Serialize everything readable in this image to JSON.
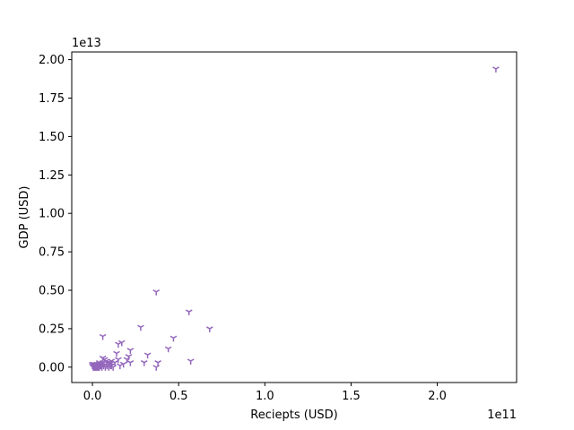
{
  "chart_data": {
    "type": "scatter",
    "xlabel": "Reciepts (USD)",
    "ylabel": "GDP (USD)",
    "x_offset_label": "1e11",
    "y_offset_label": "1e13",
    "xlim": [
      -0.12,
      2.46
    ],
    "ylim": [
      -0.1,
      2.05
    ],
    "x_ticks": [
      0.0,
      0.5,
      1.0,
      1.5,
      2.0
    ],
    "x_tick_labels": [
      "0.0",
      "0.5",
      "1.0",
      "1.5",
      "2.0"
    ],
    "y_ticks": [
      0.0,
      0.25,
      0.5,
      0.75,
      1.0,
      1.25,
      1.5,
      1.75,
      2.0
    ],
    "y_tick_labels": [
      "0.00",
      "0.25",
      "0.50",
      "0.75",
      "1.00",
      "1.25",
      "1.50",
      "1.75",
      "2.00"
    ],
    "marker_color": "#9467bd",
    "marker": "tri_down",
    "grid": false,
    "legend": "none",
    "points": [
      [
        2.34,
        1.94
      ],
      [
        0.37,
        0.49
      ],
      [
        0.56,
        0.36
      ],
      [
        0.68,
        0.25
      ],
      [
        0.47,
        0.19
      ],
      [
        0.28,
        0.26
      ],
      [
        0.06,
        0.2
      ],
      [
        0.44,
        0.12
      ],
      [
        0.57,
        0.04
      ],
      [
        0.15,
        0.15
      ],
      [
        0.17,
        0.16
      ],
      [
        0.22,
        0.11
      ],
      [
        0.32,
        0.08
      ],
      [
        0.3,
        0.03
      ],
      [
        0.38,
        0.03
      ],
      [
        0.37,
        0.0
      ],
      [
        0.14,
        0.09
      ],
      [
        0.21,
        0.07
      ],
      [
        0.2,
        0.05
      ],
      [
        0.15,
        0.05
      ],
      [
        0.18,
        0.02
      ],
      [
        0.22,
        0.03
      ],
      [
        0.16,
        0.01
      ],
      [
        0.11,
        0.04
      ],
      [
        0.13,
        0.03
      ],
      [
        0.1,
        0.02
      ],
      [
        0.09,
        0.03
      ],
      [
        0.08,
        0.04
      ],
      [
        0.07,
        0.05
      ],
      [
        0.06,
        0.03
      ],
      [
        0.05,
        0.02
      ],
      [
        0.05,
        0.01
      ],
      [
        0.04,
        0.02
      ],
      [
        0.04,
        0.0
      ],
      [
        0.03,
        0.01
      ],
      [
        0.03,
        0.0
      ],
      [
        0.02,
        0.01
      ],
      [
        0.02,
        0.0
      ],
      [
        0.01,
        0.02
      ],
      [
        0.01,
        0.0
      ],
      [
        0.0,
        0.01
      ],
      [
        0.0,
        0.02
      ],
      [
        0.005,
        0.0
      ],
      [
        0.015,
        0.0
      ],
      [
        0.025,
        0.0
      ],
      [
        0.035,
        0.0
      ],
      [
        0.045,
        0.01
      ],
      [
        0.055,
        0.0
      ],
      [
        0.065,
        0.01
      ],
      [
        0.075,
        0.0
      ],
      [
        0.085,
        0.01
      ],
      [
        0.095,
        0.0
      ],
      [
        0.105,
        0.01
      ],
      [
        0.12,
        0.0
      ],
      [
        0.06,
        0.06
      ],
      [
        0.1,
        0.03
      ],
      [
        0.11,
        0.01
      ],
      [
        0.04,
        0.03
      ],
      [
        0.025,
        0.02
      ],
      [
        0.015,
        0.01
      ]
    ]
  }
}
